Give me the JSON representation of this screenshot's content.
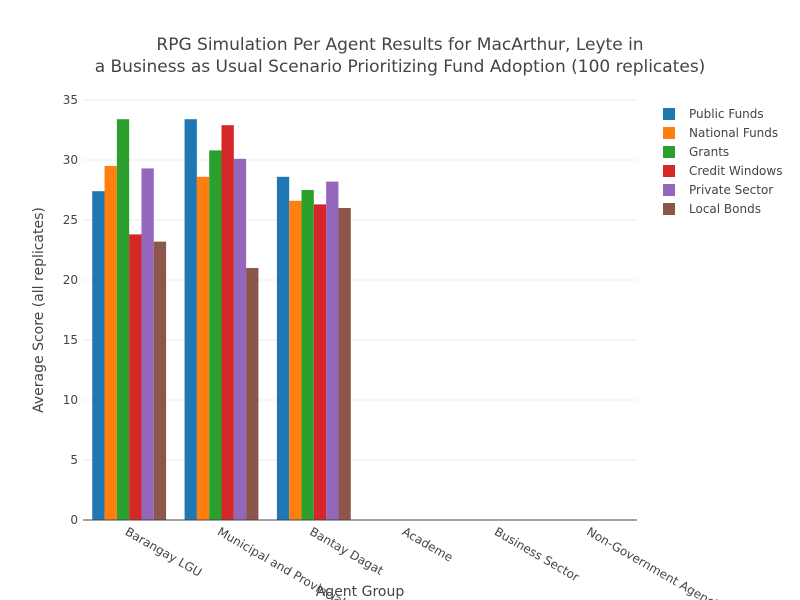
{
  "chart_data": {
    "type": "bar",
    "title_lines": [
      "RPG Simulation Per Agent Results for MacArthur, Leyte in",
      "a Business as Usual Scenario Prioritizing Fund Adoption (100 replicates)"
    ],
    "xlabel": "Agent Group",
    "ylabel": "Average Score (all replicates)",
    "ylim": [
      0,
      35
    ],
    "yticks": [
      0,
      5,
      10,
      15,
      20,
      25,
      30,
      35
    ],
    "grid": true,
    "legend_position": "top-right",
    "categories": [
      "Barangay LGU",
      "Municipal and Provincial LGU",
      "Bantay Dagat",
      "Academe",
      "Business Sector",
      "Non-Government Agencies"
    ],
    "series": [
      {
        "name": "Public Funds",
        "color": "#1f77b4",
        "values": [
          27.4,
          33.4,
          28.6,
          null,
          null,
          null
        ]
      },
      {
        "name": "National Funds",
        "color": "#ff7f0e",
        "values": [
          29.5,
          28.6,
          26.6,
          null,
          null,
          null
        ]
      },
      {
        "name": "Grants",
        "color": "#2ca02c",
        "values": [
          33.4,
          30.8,
          27.5,
          null,
          null,
          null
        ]
      },
      {
        "name": "Credit Windows",
        "color": "#d62728",
        "values": [
          23.8,
          32.9,
          26.3,
          null,
          null,
          null
        ]
      },
      {
        "name": "Private Sector",
        "color": "#9467bd",
        "values": [
          29.3,
          30.1,
          28.2,
          null,
          null,
          null
        ]
      },
      {
        "name": "Local Bonds",
        "color": "#8c564b",
        "values": [
          23.2,
          21.0,
          26.0,
          null,
          null,
          null
        ]
      }
    ]
  }
}
